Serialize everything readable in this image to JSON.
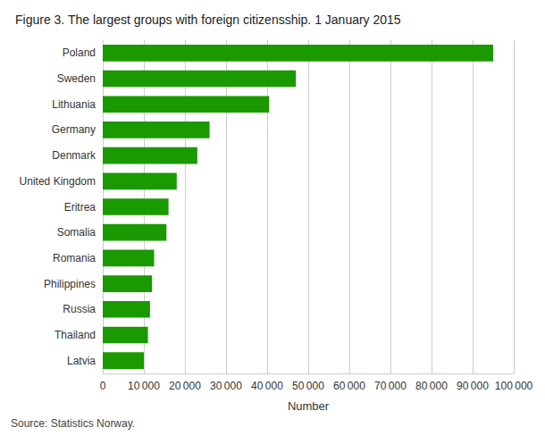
{
  "chart_data": {
    "type": "bar",
    "orientation": "horizontal",
    "title": "Figure 3. The largest groups with foreign citizensship. 1 January 2015",
    "source": "Source: Statistics Norway.",
    "categories": [
      "Poland",
      "Sweden",
      "Lithuania",
      "Germany",
      "Denmark",
      "United Kingdom",
      "Eritrea",
      "Somalia",
      "Romania",
      "Philippines",
      "Russia",
      "Thailand",
      "Latvia"
    ],
    "values": [
      95000,
      47000,
      40500,
      26000,
      23000,
      18000,
      16000,
      15500,
      12500,
      12000,
      11500,
      11000,
      10000
    ],
    "color": "#1a9900",
    "xlabel": "Number",
    "xlim": [
      0,
      100000
    ],
    "xticks": [
      0,
      {
        "value": 10000,
        "label": "10 000"
      },
      {
        "value": 20000,
        "label": "20 000"
      },
      {
        "value": 30000,
        "label": "30 000"
      },
      {
        "value": 40000,
        "label": "40 000"
      },
      {
        "value": 50000,
        "label": "50 000"
      },
      {
        "value": 60000,
        "label": "60 000"
      },
      {
        "value": 70000,
        "label": "70 000"
      },
      {
        "value": 80000,
        "label": "80 000"
      },
      {
        "value": 90000,
        "label": "90 000"
      },
      {
        "value": 100000,
        "label": "100 000"
      }
    ],
    "grid": true
  }
}
